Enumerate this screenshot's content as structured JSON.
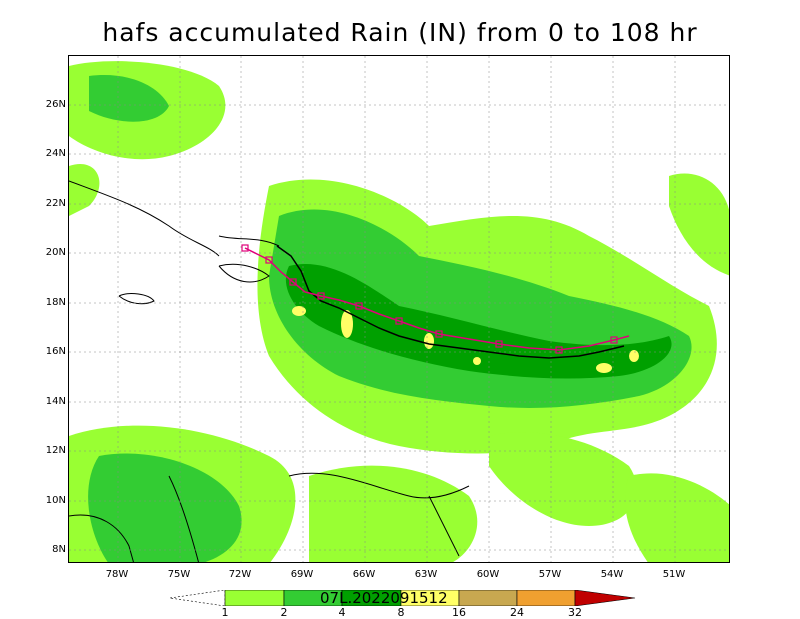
{
  "title": "hafs accumulated Rain (IN) from 0 to 108 hr",
  "storm_id": "07L.2022091512",
  "map": {
    "lat_labels": [
      "26N",
      "24N",
      "22N",
      "20N",
      "18N",
      "16N",
      "14N",
      "12N",
      "10N",
      "8N"
    ],
    "lon_labels": [
      "78W",
      "75W",
      "72W",
      "69W",
      "66W",
      "63W",
      "60W",
      "57W",
      "54W",
      "51W"
    ]
  },
  "colorbar": {
    "labels": [
      "1",
      "2",
      "4",
      "8",
      "16",
      "24",
      "32"
    ],
    "colors": [
      "#ffffff",
      "#99ff33",
      "#33cc33",
      "#00a000",
      "#ffff66",
      "#c8a850",
      "#f0a030",
      "#c00000"
    ]
  }
}
